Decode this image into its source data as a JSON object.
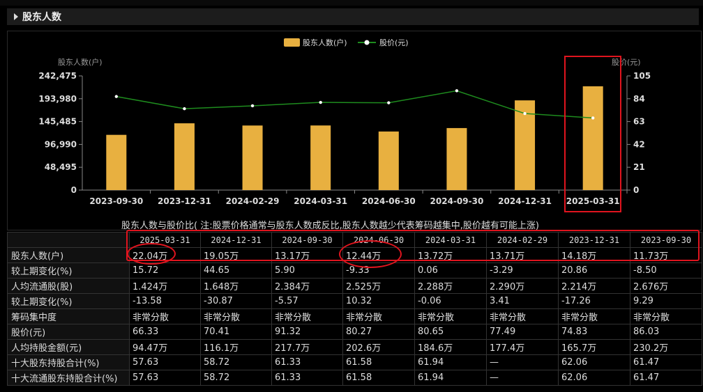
{
  "section": {
    "title": "股东人数"
  },
  "chart_data": {
    "type": "bar",
    "categories": [
      "2023-09-30",
      "2023-12-31",
      "2024-02-29",
      "2024-03-31",
      "2024-06-30",
      "2024-09-30",
      "2024-12-31",
      "2025-03-31"
    ],
    "series": [
      {
        "name": "股东人数(户)",
        "type": "bar",
        "axis": "left",
        "color": "#e8b040",
        "values": [
          117300,
          141800,
          137100,
          137200,
          124400,
          131700,
          190500,
          220400
        ]
      },
      {
        "name": "股价(元)",
        "type": "line",
        "axis": "right",
        "color": "#1e8c1e",
        "values": [
          86.03,
          74.83,
          77.49,
          80.65,
          80.27,
          91.32,
          70.41,
          66.33
        ]
      }
    ],
    "ylabel_left": "股东人数(户)",
    "ylabel_right": "股价(元)",
    "yticks_left": [
      "0",
      "48,495",
      "96,990",
      "145,485",
      "193,980",
      "242,475"
    ],
    "yticks_right": [
      "0",
      "21",
      "42",
      "63",
      "84",
      "105"
    ],
    "ylim_left": [
      0,
      242475
    ],
    "ylim_right": [
      0,
      105
    ],
    "legend_position": "top-center",
    "grid": false
  },
  "note": "股东人数与股价比( 注:股票价格通常与股东人数成反比,股东人数越少代表筹码越集中,股价越有可能上涨)",
  "table": {
    "columns": [
      "2025-03-31",
      "2024-12-31",
      "2024-09-30",
      "2024-06-30",
      "2024-03-31",
      "2024-02-29",
      "2023-12-31",
      "2023-09-30"
    ],
    "rows": [
      {
        "label": "股东人数(户)",
        "values": [
          "22.04万",
          "19.05万",
          "13.17万",
          "12.44万",
          "13.72万",
          "13.71万",
          "14.18万",
          "11.73万"
        ]
      },
      {
        "label": "较上期变化(%)",
        "values": [
          "15.72",
          "44.65",
          "5.90",
          "-9.33",
          "0.06",
          "-3.29",
          "20.86",
          "-8.50"
        ]
      },
      {
        "label": "人均流通股(股)",
        "values": [
          "1.424万",
          "1.648万",
          "2.384万",
          "2.525万",
          "2.288万",
          "2.290万",
          "2.214万",
          "2.676万"
        ]
      },
      {
        "label": "较上期变化(%)",
        "values": [
          "-13.58",
          "-30.87",
          "-5.57",
          "10.32",
          "-0.06",
          "3.41",
          "-17.26",
          "9.29"
        ]
      },
      {
        "label": "筹码集中度",
        "values": [
          "非常分散",
          "非常分散",
          "非常分散",
          "非常分散",
          "非常分散",
          "非常分散",
          "非常分散",
          "非常分散"
        ]
      },
      {
        "label": "股价(元)",
        "values": [
          "66.33",
          "70.41",
          "91.32",
          "80.27",
          "80.65",
          "77.49",
          "74.83",
          "86.03"
        ]
      },
      {
        "label": "人均持股金额(元)",
        "values": [
          "94.47万",
          "116.1万",
          "217.7万",
          "202.6万",
          "184.6万",
          "177.4万",
          "165.7万",
          "230.2万"
        ]
      },
      {
        "label": "十大股东持股合计(%)",
        "values": [
          "57.63",
          "58.72",
          "61.33",
          "61.58",
          "61.94",
          "—",
          "62.06",
          "61.47"
        ]
      },
      {
        "label": "十大流通股东持股合计(%)",
        "values": [
          "57.63",
          "58.72",
          "61.33",
          "61.58",
          "61.94",
          "—",
          "62.06",
          "61.47"
        ]
      }
    ]
  }
}
